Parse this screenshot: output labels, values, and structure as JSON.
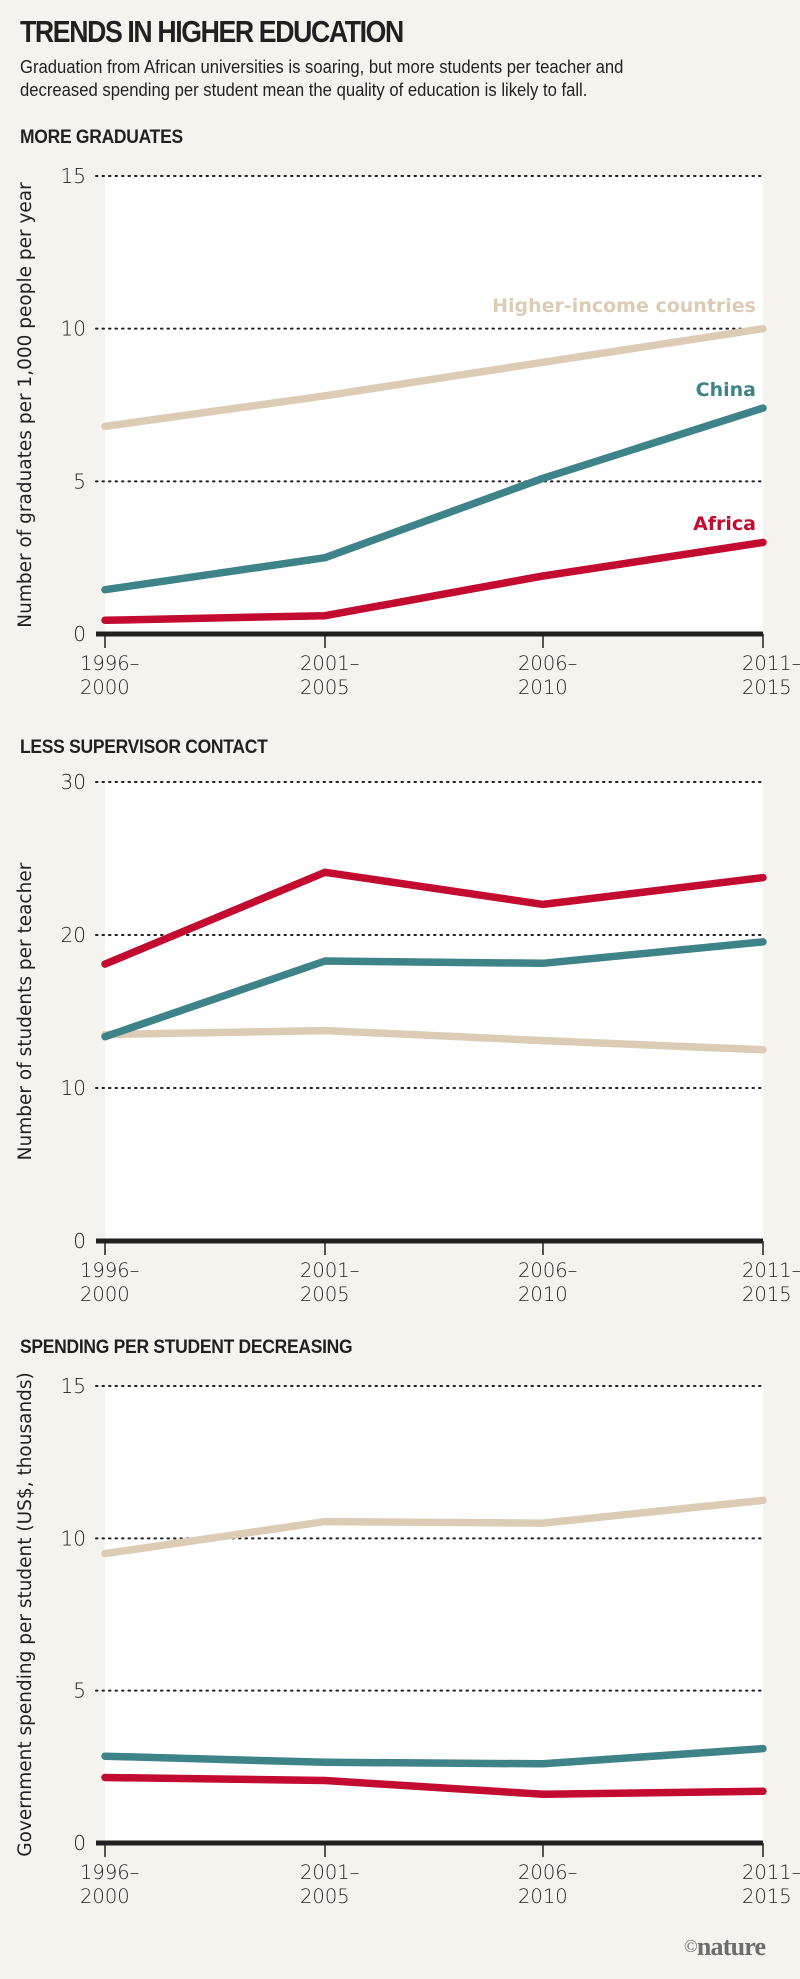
{
  "header": {
    "title": "TRENDS IN HIGHER EDUCATION",
    "subtitle_line1": "Graduation from African universities is soaring, but more students per teacher and",
    "subtitle_line2": "decreased spending per student mean the quality of education is likely to fall."
  },
  "colors": {
    "background": "#f4f3ee",
    "plot_background": "#ffffff",
    "higher_income": "#dcccb6",
    "china": "#3d8388",
    "africa": "#c30a30",
    "axis": "#231f20"
  },
  "footer": {
    "copyright_symbol": "©",
    "brand": "nature"
  },
  "chart_data": [
    {
      "type": "line",
      "title": "MORE GRADUATES",
      "xlabel": "",
      "ylabel": "Number of graduates per 1,000 people per year",
      "categories": [
        "1996–2000",
        "2001–2005",
        "2006–2010",
        "2011–2015"
      ],
      "category_lines": [
        [
          "1996–",
          "2000"
        ],
        [
          "2001–",
          "2005"
        ],
        [
          "2006–",
          "2010"
        ],
        [
          "2011–",
          "2015"
        ]
      ],
      "ylim": [
        0,
        15
      ],
      "yticks": [
        0,
        5,
        10,
        15
      ],
      "grid": true,
      "series": [
        {
          "name": "Higher-income countries",
          "key": "higher_income",
          "values": [
            6.8,
            7.8,
            8.9,
            10.0
          ],
          "label_shown": true
        },
        {
          "name": "China",
          "key": "china",
          "values": [
            1.45,
            2.5,
            5.1,
            7.4
          ],
          "label_shown": true
        },
        {
          "name": "Africa",
          "key": "africa",
          "values": [
            0.45,
            0.6,
            1.9,
            3.0
          ],
          "label_shown": true
        }
      ]
    },
    {
      "type": "line",
      "title": "LESS SUPERVISOR CONTACT",
      "xlabel": "",
      "ylabel": "Number of students per teacher",
      "categories": [
        "1996–2000",
        "2001–2005",
        "2006–2010",
        "2011–2015"
      ],
      "category_lines": [
        [
          "1996–",
          "2000"
        ],
        [
          "2001–",
          "2005"
        ],
        [
          "2006–",
          "2010"
        ],
        [
          "2011–",
          "2015"
        ]
      ],
      "ylim": [
        0,
        30
      ],
      "yticks": [
        0,
        10,
        20,
        30
      ],
      "grid": true,
      "series": [
        {
          "name": "Higher-income countries",
          "key": "higher_income",
          "values": [
            13.5,
            13.75,
            13.1,
            12.5
          ],
          "label_shown": false
        },
        {
          "name": "China",
          "key": "china",
          "values": [
            13.35,
            18.3,
            18.15,
            19.55
          ],
          "label_shown": false
        },
        {
          "name": "Africa",
          "key": "africa",
          "values": [
            18.1,
            24.1,
            22.0,
            23.75
          ],
          "label_shown": false
        }
      ]
    },
    {
      "type": "line",
      "title": "SPENDING PER STUDENT DECREASING",
      "xlabel": "",
      "ylabel": "Government spending per student (US$, thousands)",
      "categories": [
        "1996–2000",
        "2001–2005",
        "2006–2010",
        "2011–2015"
      ],
      "category_lines": [
        [
          "1996–",
          "2000"
        ],
        [
          "2001–",
          "2005"
        ],
        [
          "2006–",
          "2010"
        ],
        [
          "2011–",
          "2015"
        ]
      ],
      "ylim": [
        0,
        15
      ],
      "yticks": [
        0,
        5,
        10,
        15
      ],
      "grid": true,
      "series": [
        {
          "name": "Higher-income countries",
          "key": "higher_income",
          "values": [
            9.5,
            10.55,
            10.5,
            11.25
          ],
          "label_shown": false
        },
        {
          "name": "China",
          "key": "china",
          "values": [
            2.85,
            2.65,
            2.6,
            3.1
          ],
          "label_shown": false
        },
        {
          "name": "Africa",
          "key": "africa",
          "values": [
            2.15,
            2.05,
            1.6,
            1.7
          ],
          "label_shown": false
        }
      ]
    }
  ]
}
